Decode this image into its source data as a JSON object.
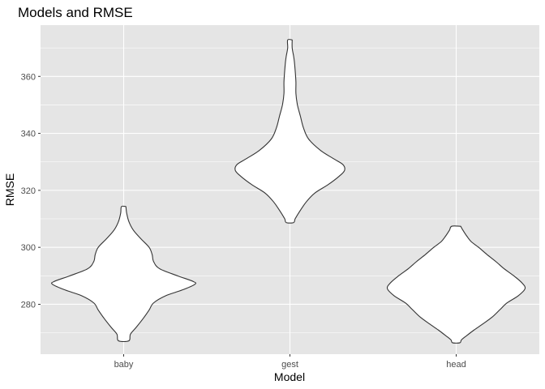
{
  "chart_data": {
    "type": "violin",
    "title": "Models and RMSE",
    "xlabel": "Model",
    "ylabel": "RMSE",
    "categories": [
      "baby",
      "gest",
      "head"
    ],
    "ylim": [
      262.5,
      378
    ],
    "yticks": [
      280,
      300,
      320,
      340,
      360
    ],
    "grid": true,
    "legend": "none",
    "colors": {
      "panel": "#E5E5E5",
      "grid_major": "#FFFFFF",
      "violin_fill": "#FFFFFF",
      "violin_stroke": "#333333"
    },
    "violins": [
      {
        "category": "baby",
        "min": 267.2,
        "max": 314.3,
        "profile": [
          [
            314.3,
            0.03
          ],
          [
            312.0,
            0.04
          ],
          [
            309.0,
            0.07
          ],
          [
            306.0,
            0.13
          ],
          [
            303.0,
            0.23
          ],
          [
            300.0,
            0.34
          ],
          [
            297.5,
            0.38
          ],
          [
            295.0,
            0.4
          ],
          [
            292.5,
            0.48
          ],
          [
            290.0,
            0.72
          ],
          [
            288.0,
            0.93
          ],
          [
            287.0,
            0.95
          ],
          [
            285.0,
            0.78
          ],
          [
            283.0,
            0.56
          ],
          [
            280.5,
            0.4
          ],
          [
            278.0,
            0.34
          ],
          [
            275.0,
            0.26
          ],
          [
            272.0,
            0.17
          ],
          [
            269.5,
            0.09
          ],
          [
            267.2,
            0.07
          ]
        ]
      },
      {
        "category": "gest",
        "min": 308.7,
        "max": 372.8,
        "profile": [
          [
            372.8,
            0.03
          ],
          [
            370.0,
            0.03
          ],
          [
            367.0,
            0.05
          ],
          [
            365.0,
            0.06
          ],
          [
            362.0,
            0.07
          ],
          [
            358.0,
            0.08
          ],
          [
            354.0,
            0.08
          ],
          [
            350.0,
            0.1
          ],
          [
            346.0,
            0.14
          ],
          [
            342.0,
            0.18
          ],
          [
            338.0,
            0.25
          ],
          [
            334.0,
            0.41
          ],
          [
            331.0,
            0.59
          ],
          [
            329.0,
            0.71
          ],
          [
            327.0,
            0.73
          ],
          [
            325.0,
            0.66
          ],
          [
            322.0,
            0.51
          ],
          [
            319.0,
            0.33
          ],
          [
            316.0,
            0.22
          ],
          [
            313.0,
            0.14
          ],
          [
            310.0,
            0.07
          ],
          [
            308.7,
            0.05
          ]
        ]
      },
      {
        "category": "head",
        "min": 266.5,
        "max": 307.4,
        "profile": [
          [
            307.4,
            0.06
          ],
          [
            306.0,
            0.09
          ],
          [
            304.0,
            0.14
          ],
          [
            302.0,
            0.2
          ],
          [
            300.0,
            0.3
          ],
          [
            297.5,
            0.41
          ],
          [
            295.0,
            0.53
          ],
          [
            292.5,
            0.64
          ],
          [
            290.0,
            0.77
          ],
          [
            287.5,
            0.88
          ],
          [
            285.5,
            0.92
          ],
          [
            283.0,
            0.83
          ],
          [
            280.5,
            0.68
          ],
          [
            278.0,
            0.58
          ],
          [
            275.5,
            0.48
          ],
          [
            273.0,
            0.35
          ],
          [
            271.0,
            0.24
          ],
          [
            269.0,
            0.14
          ],
          [
            267.5,
            0.07
          ],
          [
            266.5,
            0.05
          ]
        ]
      }
    ]
  }
}
